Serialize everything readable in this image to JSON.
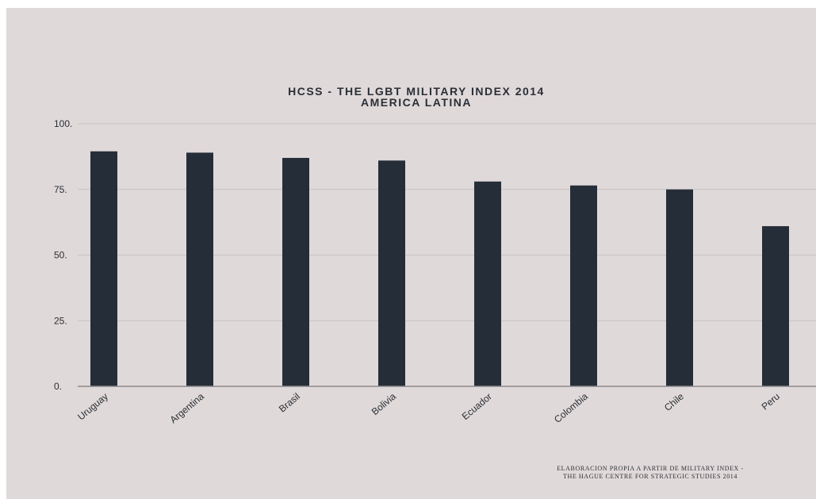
{
  "chart_data": {
    "type": "bar",
    "title": "HCSS -  THE LGBT MILITARY INDEX 2014",
    "subtitle": "AMERICA LATINA",
    "categories": [
      "Uruguay",
      "Argentina",
      "Brasil",
      "Bolivia",
      "Ecuador",
      "Colombia",
      "Chile",
      "Peru"
    ],
    "values": [
      89.5,
      89,
      87,
      86,
      78,
      76.5,
      75,
      61
    ],
    "ylim": [
      0,
      100
    ],
    "yticks": [
      0,
      25,
      50,
      75,
      100
    ],
    "ytick_labels": [
      "0.",
      "25.",
      "50.",
      "75.",
      "100."
    ],
    "xlabel": "",
    "ylabel": "",
    "grid": true,
    "legend": "none",
    "colors": {
      "bar": "#252e38",
      "background": "#e0d9d9",
      "grid": "#c9c2c2",
      "axis": "#8e8a8a",
      "text": "#2a2f36"
    },
    "source_lines": [
      "ELABORACION PROPIA A PARTIR DE MILITARY INDEX -",
      "THE HAGUE CENTRE FOR STRATEGIC STUDIES 2014"
    ]
  }
}
